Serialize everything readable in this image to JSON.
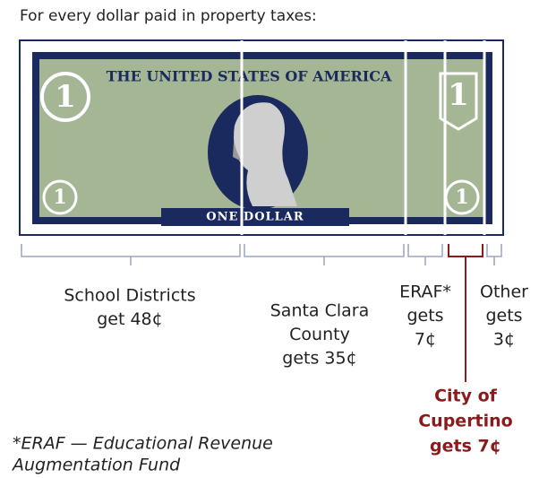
{
  "header": {
    "title": "For every dollar paid in property taxes:"
  },
  "bill": {
    "title": "THE UNITED STATES OF AMERICA",
    "denomination": "ONE DOLLAR",
    "numeral": "1"
  },
  "segments": [
    {
      "lines": [
        "School Districts",
        "get 48¢"
      ]
    },
    {
      "lines": [
        "Santa Clara",
        "County",
        "gets 35¢"
      ]
    },
    {
      "lines": [
        "ERAF*",
        "gets",
        "7¢"
      ]
    },
    {
      "lines": [
        "City of",
        "Cupertino",
        "gets 7¢"
      ]
    },
    {
      "lines": [
        "Other",
        "gets",
        "3¢"
      ]
    }
  ],
  "footnote": {
    "lines": [
      "*ERAF — Educational Revenue",
      "Augmentation Fund"
    ]
  }
}
